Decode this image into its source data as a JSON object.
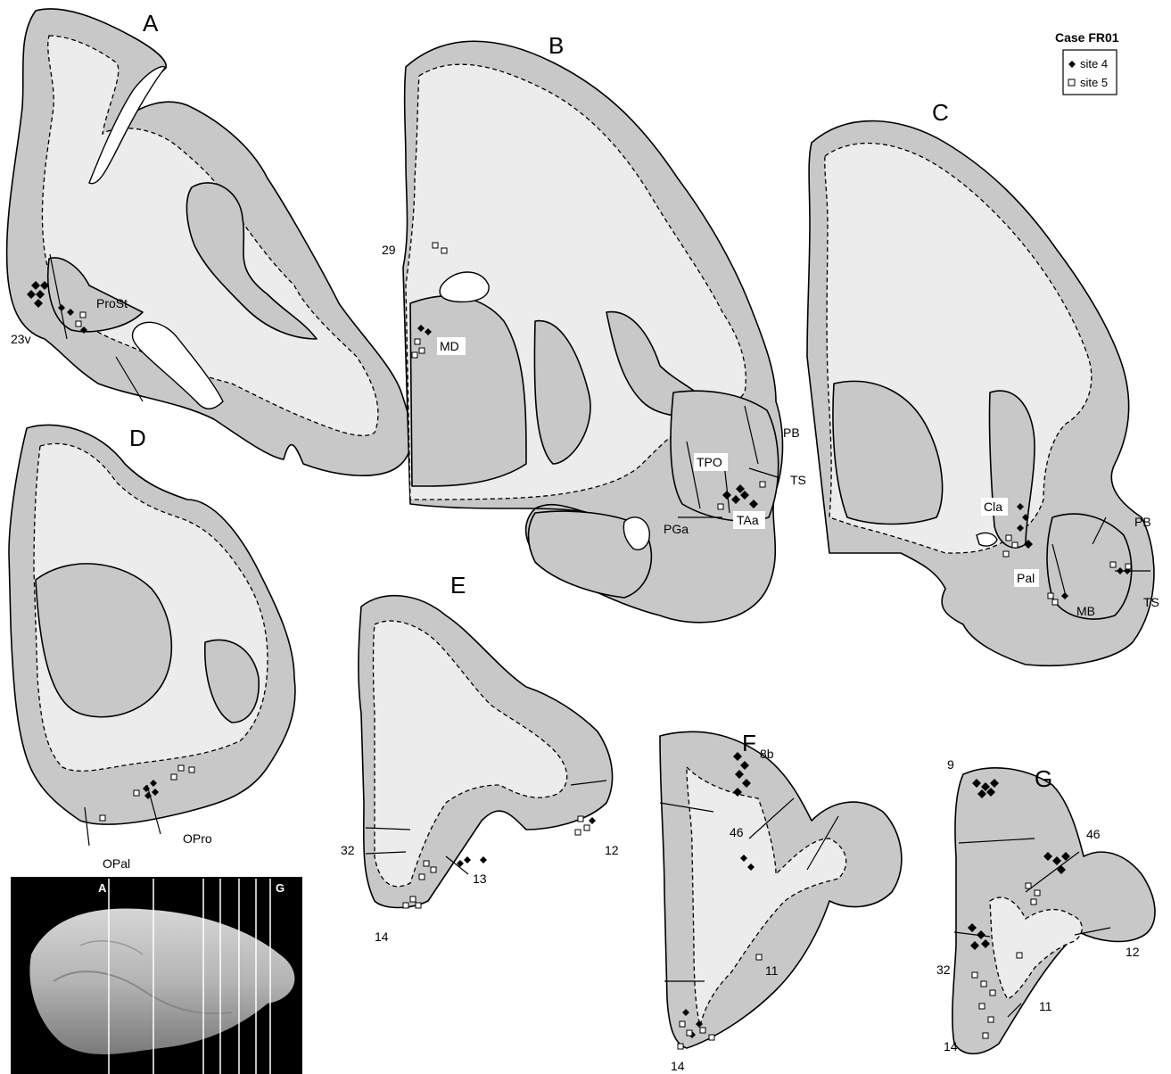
{
  "legend": {
    "title": "Case FR01",
    "items": [
      {
        "label": "site 4",
        "marker": "filled-diamond",
        "color": "#000000"
      },
      {
        "label": "site 5",
        "marker": "open-square",
        "color": "#ffffff"
      }
    ]
  },
  "sections": {
    "A": {
      "label": "A",
      "areas": [
        "ProSt",
        "23v"
      ]
    },
    "B": {
      "label": "B",
      "areas": [
        "29",
        "MD",
        "PB",
        "TPO",
        "TS",
        "PGa",
        "TAa"
      ]
    },
    "C": {
      "label": "C",
      "areas": [
        "Cla",
        "PB",
        "Pal",
        "TS",
        "MB"
      ]
    },
    "D": {
      "label": "D",
      "areas": [
        "OPal",
        "OPro"
      ]
    },
    "E": {
      "label": "E",
      "areas": [
        "32",
        "13",
        "12",
        "14"
      ]
    },
    "F": {
      "label": "F",
      "areas": [
        "8b",
        "46",
        "11",
        "14"
      ]
    },
    "G": {
      "label": "G",
      "areas": [
        "9",
        "46",
        "32",
        "12",
        "11",
        "14"
      ]
    }
  },
  "photo": {
    "label_first": "A",
    "label_last": "G",
    "section_lines": 7
  },
  "colors": {
    "cortex": "#c8c8c8",
    "white_matter": "#ececec",
    "background": "#ffffff"
  }
}
